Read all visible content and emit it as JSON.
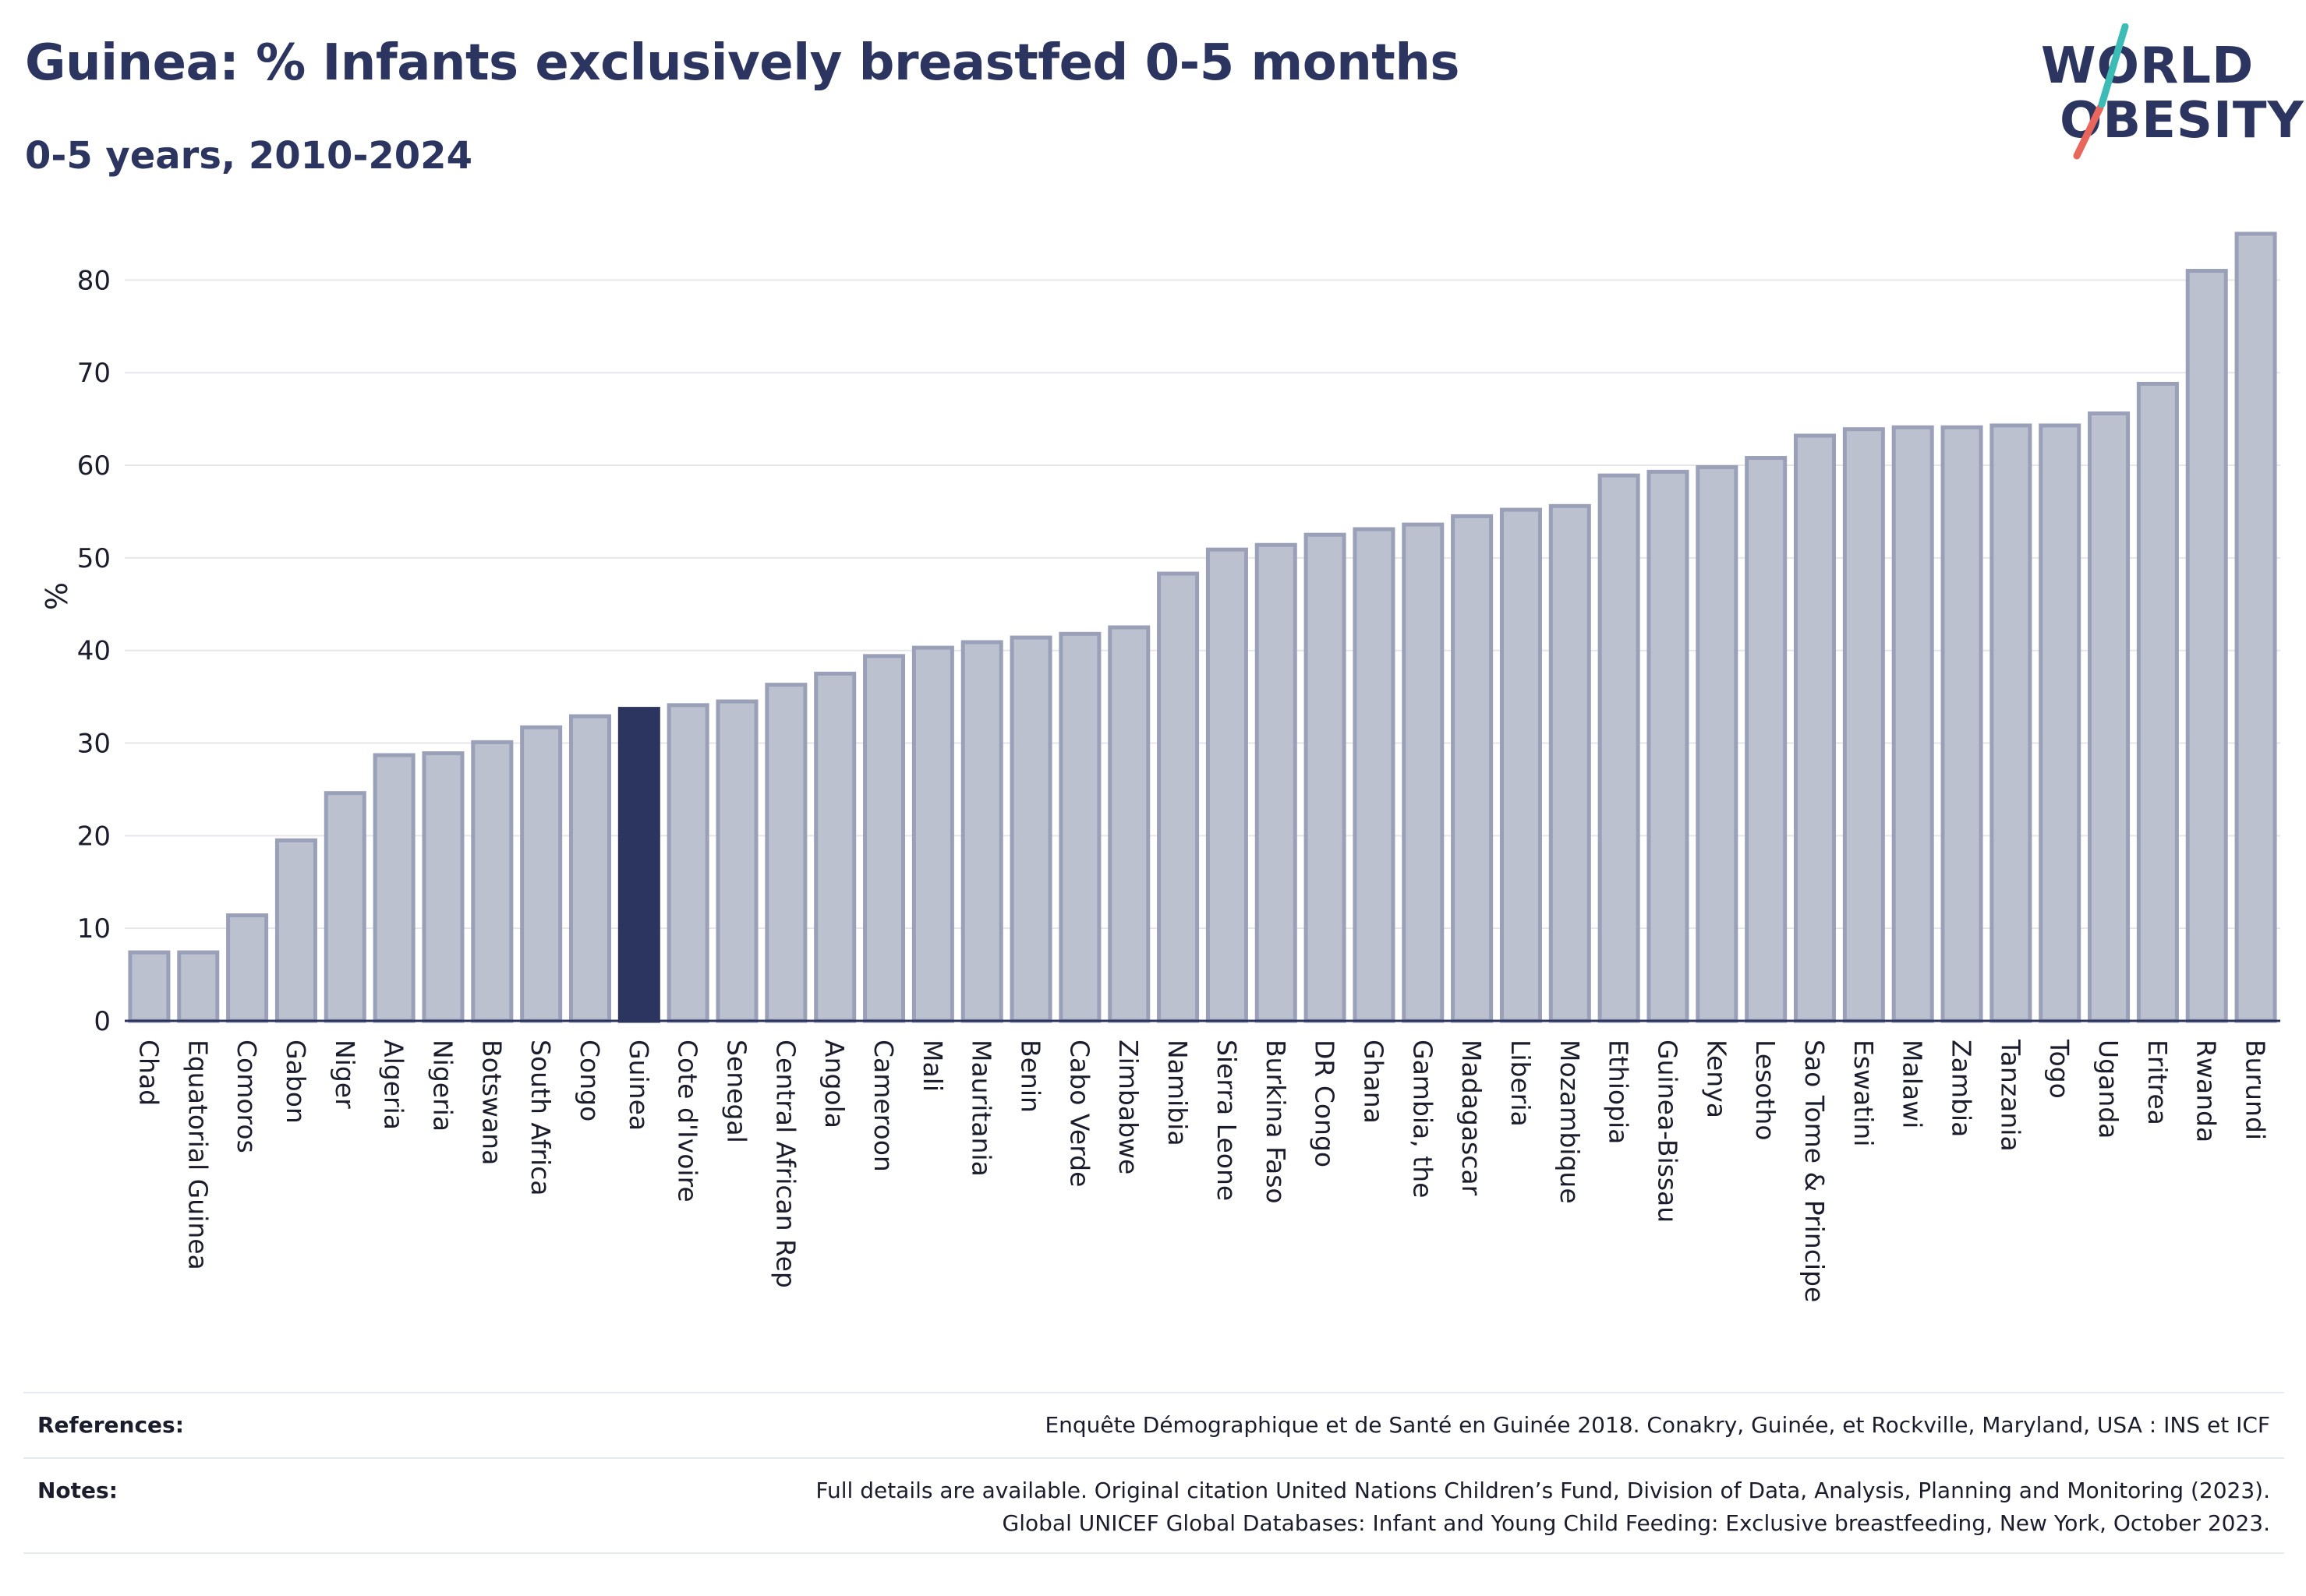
{
  "header": {
    "title": "Guinea: % Infants exclusively breastfed 0-5 months",
    "subtitle": "0-5 years, 2010-2024"
  },
  "logo": {
    "line1": "WORLD",
    "line2": "OBESITY",
    "slash_colors": [
      "#3cbcb5",
      "#e8665c"
    ]
  },
  "colors": {
    "bar": "#bcc1d0",
    "bar_border": "#9aa0b8",
    "highlight": "#2b3560",
    "grid": "#e6e6ec",
    "axis": "#2b3560"
  },
  "chart_data": {
    "type": "bar",
    "title": "Guinea: % Infants exclusively breastfed 0-5 months",
    "subtitle": "0-5 years, 2010-2024",
    "xlabel": "",
    "ylabel": "%",
    "ylim": [
      0,
      85
    ],
    "yticks": [
      0,
      10,
      20,
      30,
      40,
      50,
      60,
      70,
      80
    ],
    "grid": true,
    "highlight": "Guinea",
    "categories": [
      "Chad",
      "Equatorial Guinea",
      "Comoros",
      "Gabon",
      "Niger",
      "Algeria",
      "Nigeria",
      "Botswana",
      "South Africa",
      "Congo",
      "Guinea",
      "Cote d'Ivoire",
      "Senegal",
      "Central African Rep",
      "Angola",
      "Cameroon",
      "Mali",
      "Mauritania",
      "Benin",
      "Cabo Verde",
      "Zimbabwe",
      "Namibia",
      "Sierra Leone",
      "Burkina Faso",
      "DR Congo",
      "Ghana",
      "Gambia, the",
      "Madagascar",
      "Liberia",
      "Mozambique",
      "Ethiopia",
      "Guinea-Bissau",
      "Kenya",
      "Lesotho",
      "Sao Tome & Principe",
      "Eswatini",
      "Malawi",
      "Zambia",
      "Tanzania",
      "Togo",
      "Uganda",
      "Eritrea",
      "Rwanda",
      "Burundi"
    ],
    "values": [
      7.4,
      7.4,
      11.4,
      19.5,
      24.6,
      28.7,
      28.9,
      30.1,
      31.7,
      32.9,
      33.7,
      34.1,
      34.5,
      36.3,
      37.5,
      39.4,
      40.3,
      40.9,
      41.4,
      41.8,
      42.5,
      48.3,
      50.9,
      51.4,
      52.5,
      53.1,
      53.6,
      54.5,
      55.2,
      55.6,
      58.9,
      59.3,
      59.8,
      60.8,
      63.2,
      63.9,
      64.1,
      64.1,
      64.3,
      64.3,
      65.6,
      68.8,
      81.0,
      85.0
    ]
  },
  "footer": {
    "references_label": "References:",
    "references_text": "Enquête Démographique et de Santé en Guinée 2018. Conakry, Guinée, et Rockville, Maryland, USA : INS et ICF",
    "notes_label": "Notes:",
    "notes_line1": "Full details are available. Original citation United Nations Children’s Fund, Division of Data, Analysis, Planning and Monitoring (2023).",
    "notes_line2": "Global UNICEF Global Databases: Infant and Young Child Feeding: Exclusive breastfeeding, New York, October 2023."
  }
}
